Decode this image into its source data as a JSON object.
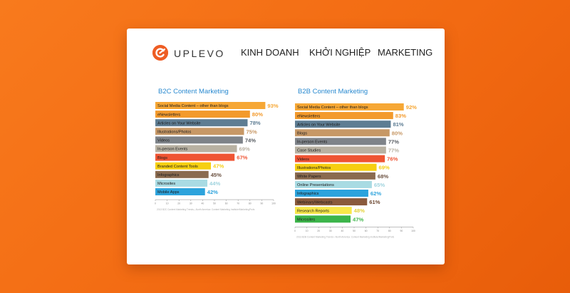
{
  "header": {
    "logo_text": "UPLEVO",
    "nav": [
      "KINH DOANH",
      "KHỞI NGHIỆP",
      "MARKETING"
    ]
  },
  "colors": {
    "background": "#f26a12",
    "accent": "#ee5d24",
    "title_blue": "#2a8ad0"
  },
  "chart_data": [
    {
      "type": "bar",
      "orientation": "horizontal",
      "title": "B2C Content Marketing",
      "xlim": [
        0,
        100
      ],
      "x_ticks": [
        "0",
        "10",
        "20",
        "30",
        "40",
        "50",
        "60",
        "70",
        "80",
        "90",
        "100"
      ],
      "footnote": "2013 B2C Content Marketing Trends—North America: Content Marketing Institute/MarketingProfs",
      "categories": [
        "Social Media Content – other than blogs",
        "eNewsletters",
        "Articles on Your Website",
        "Illustrations/Photos",
        "Videos",
        "In-person Events",
        "Blogs",
        "Branded Content Tools",
        "Infographics",
        "Microsites",
        "Mobile Apps"
      ],
      "values": [
        93,
        80,
        78,
        75,
        74,
        69,
        67,
        47,
        45,
        44,
        42
      ],
      "labels": [
        "93%",
        "80%",
        "78%",
        "75%",
        "74%",
        "69%",
        "67%",
        "47%",
        "45%",
        "44%",
        "42%"
      ],
      "bar_colors": [
        "#f6a735",
        "#f39a2c",
        "#5e7d93",
        "#c79866",
        "#7e8389",
        "#b8b1a2",
        "#ef5433",
        "#f6cf11",
        "#8a6a4f",
        "#a9dbe3",
        "#2da3dc"
      ],
      "label_colors": [
        "#f6a735",
        "#f39a2c",
        "#5e7d93",
        "#c79866",
        "#555a60",
        "#b8b1a2",
        "#ef5433",
        "#f6cf11",
        "#6b5140",
        "#9fd3de",
        "#2da3dc"
      ]
    },
    {
      "type": "bar",
      "orientation": "horizontal",
      "title": "B2B Content Marketing",
      "xlim": [
        0,
        100
      ],
      "x_ticks": [
        "0",
        "10",
        "20",
        "30",
        "40",
        "50",
        "60",
        "70",
        "80",
        "90",
        "100"
      ],
      "footnote": "2013 B2B Content Marketing Trends—North America: Content Marketing Institute/MarketingProfs",
      "categories": [
        "Social Media Content – other than blogs",
        "eNewsletters",
        "Articles on Your Website",
        "Blogs",
        "In-person Events",
        "Case Studies",
        "Videos",
        "Illustrations/Photos",
        "White Papers",
        "Online Presentations",
        "Infographics",
        "Webinars/Webcasts",
        "Research Reports",
        "Microsites"
      ],
      "values": [
        92,
        83,
        81,
        80,
        77,
        77,
        76,
        69,
        68,
        65,
        62,
        61,
        48,
        47
      ],
      "labels": [
        "92%",
        "83%",
        "81%",
        "80%",
        "77%",
        "77%",
        "76%",
        "69%",
        "68%",
        "65%",
        "62%",
        "61%",
        "48%",
        "47%"
      ],
      "bar_colors": [
        "#f6a735",
        "#f39a2c",
        "#5e7d93",
        "#c79866",
        "#7e8389",
        "#b8b1a2",
        "#ef5433",
        "#f6cf11",
        "#8a6a4f",
        "#a9dbe3",
        "#2da3dc",
        "#8a5a3c",
        "#f8e84a",
        "#3cb54a"
      ],
      "label_colors": [
        "#f6a735",
        "#f39a2c",
        "#5e7d93",
        "#c79866",
        "#555a60",
        "#b8b1a2",
        "#ef5433",
        "#f6cf11",
        "#6b5140",
        "#9fd3de",
        "#2da3dc",
        "#6b4630",
        "#e4d23a",
        "#3cb54a"
      ]
    }
  ]
}
